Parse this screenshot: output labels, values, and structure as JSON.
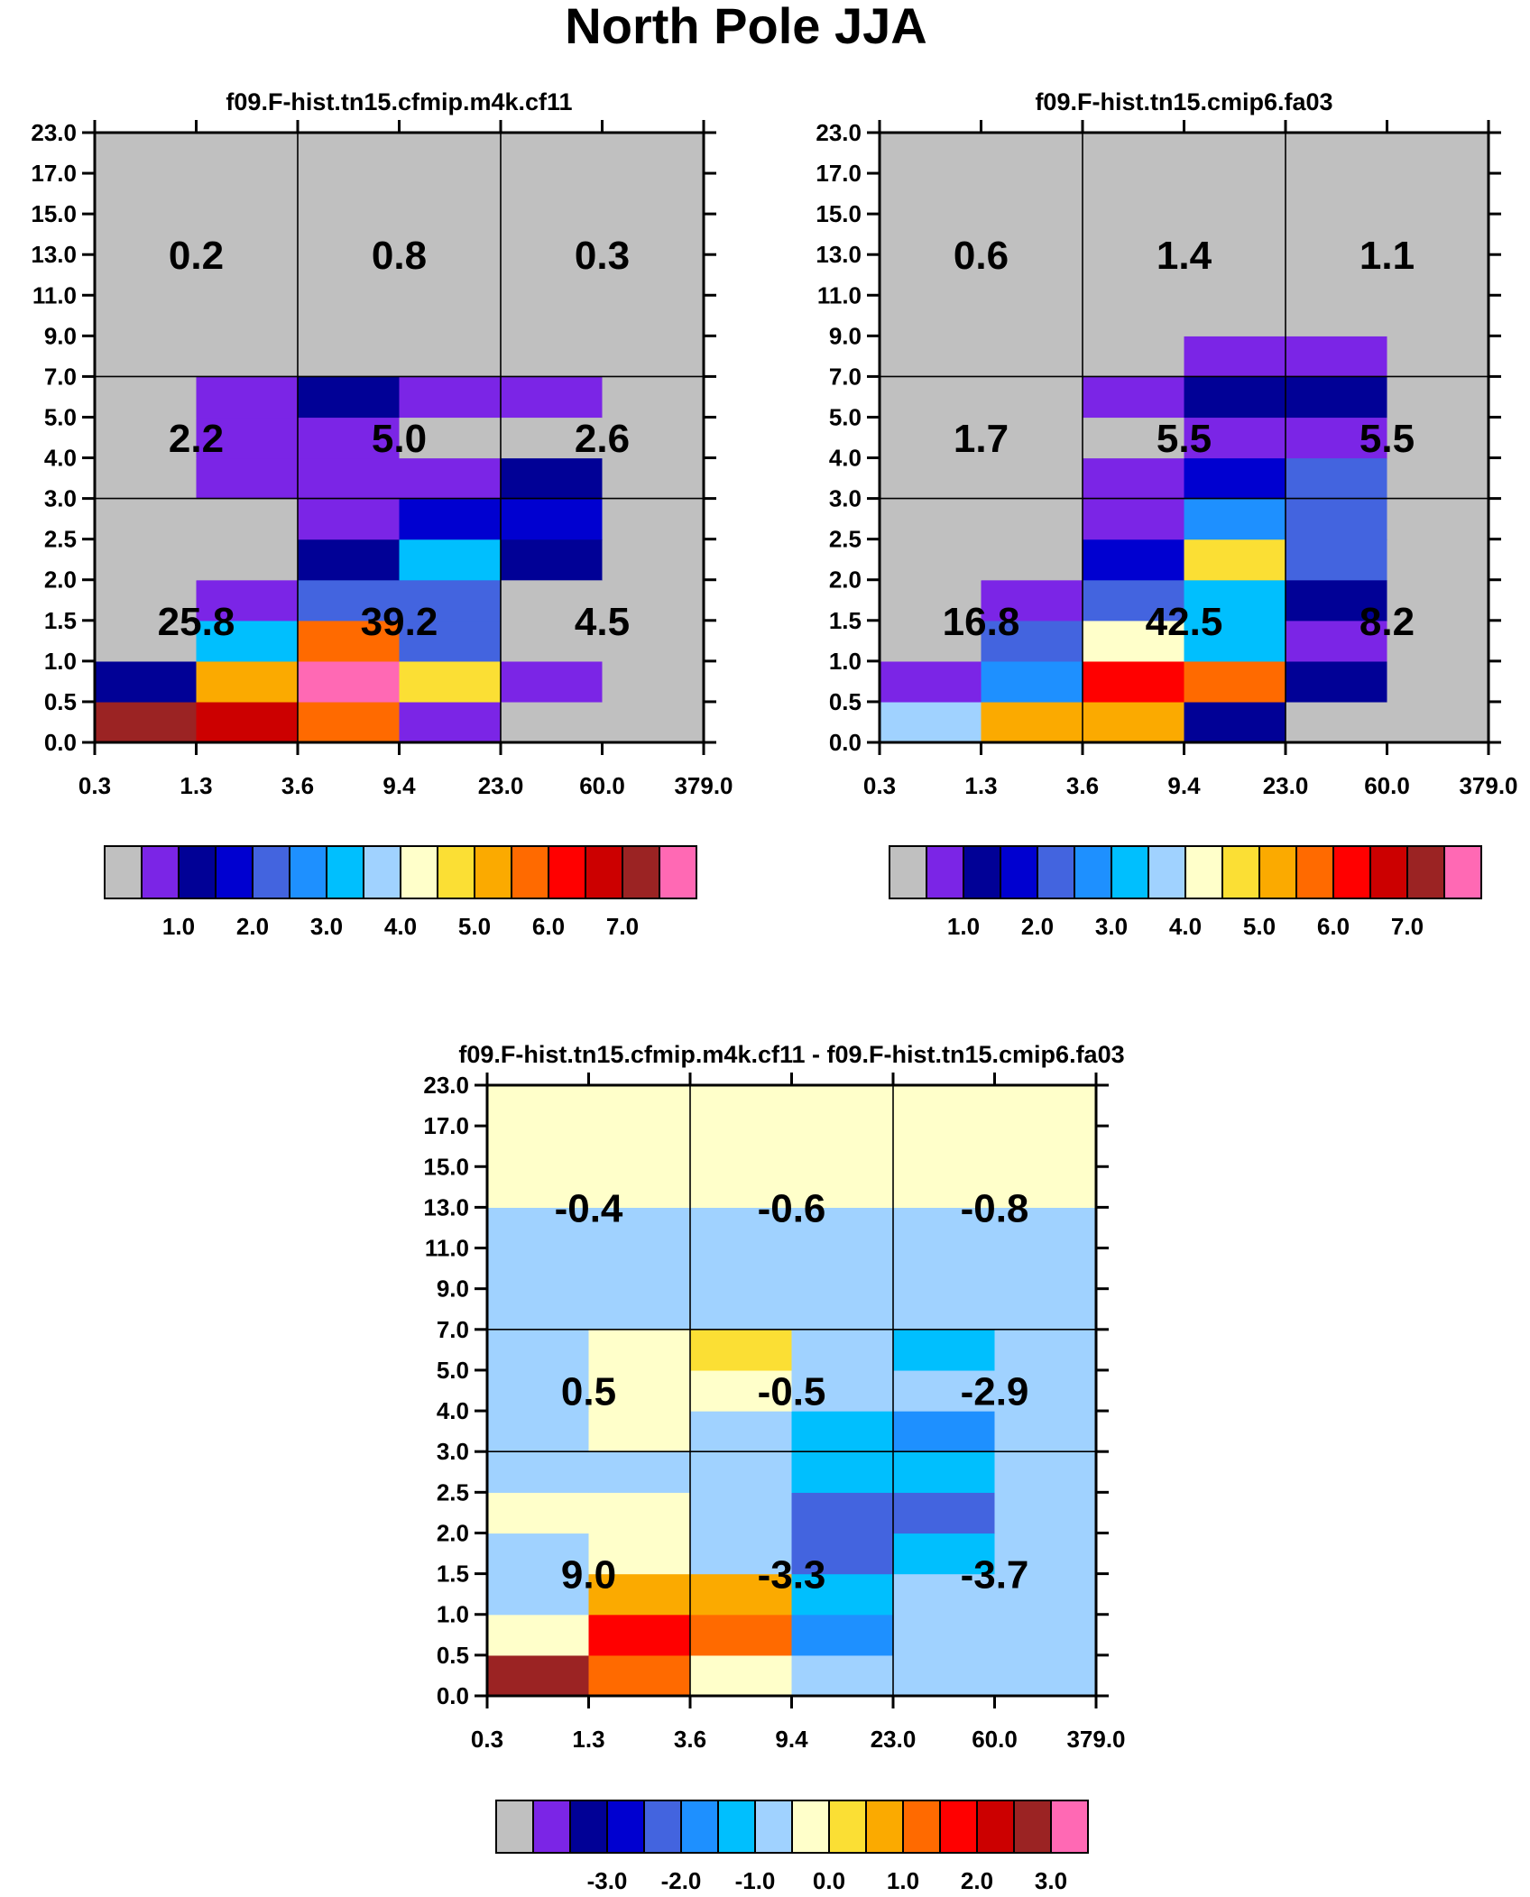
{
  "figure_title": "North Pole JJA",
  "chart_data": [
    {
      "type": "heatmap",
      "title": "f09.F-hist.tn15.cfmip.m4k.cf11",
      "x_tick_labels": [
        "0.3",
        "1.3",
        "3.6",
        "9.4",
        "23.0",
        "60.0",
        "379.0"
      ],
      "y_tick_labels": [
        "0.0",
        "0.5",
        "1.0",
        "1.5",
        "2.0",
        "2.5",
        "3.0",
        "4.0",
        "5.0",
        "7.0",
        "9.0",
        "11.0",
        "13.0",
        "15.0",
        "17.0",
        "23.0"
      ],
      "cells_bottom_to_top": [
        [
          "#9b2323",
          "#cc0000",
          "#ff6a00",
          "#7b25e6",
          "#c0c0c0",
          "#c0c0c0"
        ],
        [
          "#010196",
          "#fbaa00",
          "#ff69b4",
          "#fbdf34",
          "#7b25e6",
          "#c0c0c0"
        ],
        [
          "#c0c0c0",
          "#00bffe",
          "#ff6a00",
          "#4364df",
          "#c0c0c0",
          "#c0c0c0"
        ],
        [
          "#c0c0c0",
          "#7b25e6",
          "#4364df",
          "#4364df",
          "#c0c0c0",
          "#c0c0c0"
        ],
        [
          "#c0c0c0",
          "#c0c0c0",
          "#010196",
          "#00bffe",
          "#010196",
          "#c0c0c0"
        ],
        [
          "#c0c0c0",
          "#c0c0c0",
          "#7b25e6",
          "#0000d0",
          "#0000d0",
          "#c0c0c0"
        ],
        [
          "#c0c0c0",
          "#7b25e6",
          "#7b25e6",
          "#7b25e6",
          "#010196",
          "#c0c0c0"
        ],
        [
          "#c0c0c0",
          "#7b25e6",
          "#7b25e6",
          "#c0c0c0",
          "#c0c0c0",
          "#c0c0c0"
        ],
        [
          "#c0c0c0",
          "#7b25e6",
          "#010196",
          "#7b25e6",
          "#7b25e6",
          "#c0c0c0"
        ],
        [
          "#c0c0c0",
          "#c0c0c0",
          "#c0c0c0",
          "#c0c0c0",
          "#c0c0c0",
          "#c0c0c0"
        ],
        [
          "#c0c0c0",
          "#c0c0c0",
          "#c0c0c0",
          "#c0c0c0",
          "#c0c0c0",
          "#c0c0c0"
        ],
        [
          "#c0c0c0",
          "#c0c0c0",
          "#c0c0c0",
          "#c0c0c0",
          "#c0c0c0",
          "#c0c0c0"
        ],
        [
          "#c0c0c0",
          "#c0c0c0",
          "#c0c0c0",
          "#c0c0c0",
          "#c0c0c0",
          "#c0c0c0"
        ],
        [
          "#c0c0c0",
          "#c0c0c0",
          "#c0c0c0",
          "#c0c0c0",
          "#c0c0c0",
          "#c0c0c0"
        ],
        [
          "#c0c0c0",
          "#c0c0c0",
          "#c0c0c0",
          "#c0c0c0",
          "#c0c0c0",
          "#c0c0c0"
        ]
      ],
      "group_values_bottom_to_top": [
        [
          "25.8",
          "39.2",
          "4.5"
        ],
        [
          "2.2",
          "5.0",
          "2.6"
        ],
        [
          "0.2",
          "0.8",
          "0.3"
        ]
      ],
      "colorbar": {
        "colors": [
          "#c0c0c0",
          "#7b25e6",
          "#010196",
          "#0000d0",
          "#4364df",
          "#1e90ff",
          "#00bffe",
          "#a0d2ff",
          "#ffffca",
          "#fbdf34",
          "#fbaa00",
          "#ff6a00",
          "#ff0000",
          "#cc0000",
          "#9b2323",
          "#ff69b4"
        ],
        "labels": [
          "1.0",
          "2.0",
          "3.0",
          "4.0",
          "5.0",
          "6.0",
          "7.0"
        ],
        "label_after_box": [
          1,
          3,
          5,
          7,
          9,
          11,
          13
        ]
      }
    },
    {
      "type": "heatmap",
      "title": "f09.F-hist.tn15.cmip6.fa03",
      "x_tick_labels": [
        "0.3",
        "1.3",
        "3.6",
        "9.4",
        "23.0",
        "60.0",
        "379.0"
      ],
      "y_tick_labels": [
        "0.0",
        "0.5",
        "1.0",
        "1.5",
        "2.0",
        "2.5",
        "3.0",
        "4.0",
        "5.0",
        "7.0",
        "9.0",
        "11.0",
        "13.0",
        "15.0",
        "17.0",
        "23.0"
      ],
      "cells_bottom_to_top": [
        [
          "#a0d2ff",
          "#fbaa00",
          "#fbaa00",
          "#010196",
          "#c0c0c0",
          "#c0c0c0"
        ],
        [
          "#7b25e6",
          "#1e90ff",
          "#ff0000",
          "#ff6a00",
          "#010196",
          "#c0c0c0"
        ],
        [
          "#c0c0c0",
          "#4364df",
          "#ffffca",
          "#00bffe",
          "#7b25e6",
          "#c0c0c0"
        ],
        [
          "#c0c0c0",
          "#7b25e6",
          "#4364df",
          "#00bffe",
          "#010196",
          "#c0c0c0"
        ],
        [
          "#c0c0c0",
          "#c0c0c0",
          "#0000d0",
          "#fbdf34",
          "#4364df",
          "#c0c0c0"
        ],
        [
          "#c0c0c0",
          "#c0c0c0",
          "#7b25e6",
          "#1e90ff",
          "#4364df",
          "#c0c0c0"
        ],
        [
          "#c0c0c0",
          "#c0c0c0",
          "#7b25e6",
          "#0000d0",
          "#4364df",
          "#c0c0c0"
        ],
        [
          "#c0c0c0",
          "#c0c0c0",
          "#c0c0c0",
          "#7b25e6",
          "#7b25e6",
          "#c0c0c0"
        ],
        [
          "#c0c0c0",
          "#c0c0c0",
          "#7b25e6",
          "#010196",
          "#010196",
          "#c0c0c0"
        ],
        [
          "#c0c0c0",
          "#c0c0c0",
          "#c0c0c0",
          "#7b25e6",
          "#7b25e6",
          "#c0c0c0"
        ],
        [
          "#c0c0c0",
          "#c0c0c0",
          "#c0c0c0",
          "#c0c0c0",
          "#c0c0c0",
          "#c0c0c0"
        ],
        [
          "#c0c0c0",
          "#c0c0c0",
          "#c0c0c0",
          "#c0c0c0",
          "#c0c0c0",
          "#c0c0c0"
        ],
        [
          "#c0c0c0",
          "#c0c0c0",
          "#c0c0c0",
          "#c0c0c0",
          "#c0c0c0",
          "#c0c0c0"
        ],
        [
          "#c0c0c0",
          "#c0c0c0",
          "#c0c0c0",
          "#c0c0c0",
          "#c0c0c0",
          "#c0c0c0"
        ],
        [
          "#c0c0c0",
          "#c0c0c0",
          "#c0c0c0",
          "#c0c0c0",
          "#c0c0c0",
          "#c0c0c0"
        ]
      ],
      "group_values_bottom_to_top": [
        [
          "16.8",
          "42.5",
          "8.2"
        ],
        [
          "1.7",
          "5.5",
          "5.5"
        ],
        [
          "0.6",
          "1.4",
          "1.1"
        ]
      ],
      "colorbar": {
        "colors": [
          "#c0c0c0",
          "#7b25e6",
          "#010196",
          "#0000d0",
          "#4364df",
          "#1e90ff",
          "#00bffe",
          "#a0d2ff",
          "#ffffca",
          "#fbdf34",
          "#fbaa00",
          "#ff6a00",
          "#ff0000",
          "#cc0000",
          "#9b2323",
          "#ff69b4"
        ],
        "labels": [
          "1.0",
          "2.0",
          "3.0",
          "4.0",
          "5.0",
          "6.0",
          "7.0"
        ],
        "label_after_box": [
          1,
          3,
          5,
          7,
          9,
          11,
          13
        ]
      }
    },
    {
      "type": "heatmap",
      "title": "f09.F-hist.tn15.cfmip.m4k.cf11 - f09.F-hist.tn15.cmip6.fa03",
      "x_tick_labels": [
        "0.3",
        "1.3",
        "3.6",
        "9.4",
        "23.0",
        "60.0",
        "379.0"
      ],
      "y_tick_labels": [
        "0.0",
        "0.5",
        "1.0",
        "1.5",
        "2.0",
        "2.5",
        "3.0",
        "4.0",
        "5.0",
        "7.0",
        "9.0",
        "11.0",
        "13.0",
        "15.0",
        "17.0",
        "23.0"
      ],
      "cells_bottom_to_top": [
        [
          "#9b2323",
          "#ff6a00",
          "#ffffca",
          "#a0d2ff",
          "#a0d2ff",
          "#a0d2ff"
        ],
        [
          "#ffffca",
          "#ff0000",
          "#ff6a00",
          "#1e90ff",
          "#a0d2ff",
          "#a0d2ff"
        ],
        [
          "#a0d2ff",
          "#fbaa00",
          "#fbaa00",
          "#00bffe",
          "#a0d2ff",
          "#a0d2ff"
        ],
        [
          "#a0d2ff",
          "#ffffca",
          "#a0d2ff",
          "#4364df",
          "#00bffe",
          "#a0d2ff"
        ],
        [
          "#ffffca",
          "#ffffca",
          "#a0d2ff",
          "#4364df",
          "#4364df",
          "#a0d2ff"
        ],
        [
          "#a0d2ff",
          "#a0d2ff",
          "#a0d2ff",
          "#00bffe",
          "#00bffe",
          "#a0d2ff"
        ],
        [
          "#a0d2ff",
          "#ffffca",
          "#a0d2ff",
          "#00bffe",
          "#1e90ff",
          "#a0d2ff"
        ],
        [
          "#a0d2ff",
          "#ffffca",
          "#ffffca",
          "#a0d2ff",
          "#a0d2ff",
          "#a0d2ff"
        ],
        [
          "#a0d2ff",
          "#ffffca",
          "#fbdf34",
          "#a0d2ff",
          "#00bffe",
          "#a0d2ff"
        ],
        [
          "#a0d2ff",
          "#a0d2ff",
          "#a0d2ff",
          "#a0d2ff",
          "#a0d2ff",
          "#a0d2ff"
        ],
        [
          "#a0d2ff",
          "#a0d2ff",
          "#a0d2ff",
          "#a0d2ff",
          "#a0d2ff",
          "#a0d2ff"
        ],
        [
          "#a0d2ff",
          "#a0d2ff",
          "#a0d2ff",
          "#a0d2ff",
          "#a0d2ff",
          "#a0d2ff"
        ],
        [
          "#ffffca",
          "#ffffca",
          "#ffffca",
          "#ffffca",
          "#ffffca",
          "#ffffca"
        ],
        [
          "#ffffca",
          "#ffffca",
          "#ffffca",
          "#ffffca",
          "#ffffca",
          "#ffffca"
        ],
        [
          "#ffffca",
          "#ffffca",
          "#ffffca",
          "#ffffca",
          "#ffffca",
          "#ffffca"
        ]
      ],
      "group_values_bottom_to_top": [
        [
          "9.0",
          "-3.3",
          "-3.7"
        ],
        [
          "0.5",
          "-0.5",
          "-2.9"
        ],
        [
          "-0.4",
          "-0.6",
          "-0.8"
        ]
      ],
      "colorbar": {
        "colors": [
          "#c0c0c0",
          "#7b25e6",
          "#010196",
          "#0000d0",
          "#4364df",
          "#1e90ff",
          "#00bffe",
          "#a0d2ff",
          "#ffffca",
          "#fbdf34",
          "#fbaa00",
          "#ff6a00",
          "#ff0000",
          "#cc0000",
          "#9b2323",
          "#ff69b4"
        ],
        "labels": [
          "-3.0",
          "-2.0",
          "-1.0",
          "0.0",
          "1.0",
          "2.0",
          "3.0"
        ],
        "label_after_box": [
          2,
          4,
          6,
          8,
          10,
          12,
          14
        ]
      }
    }
  ]
}
